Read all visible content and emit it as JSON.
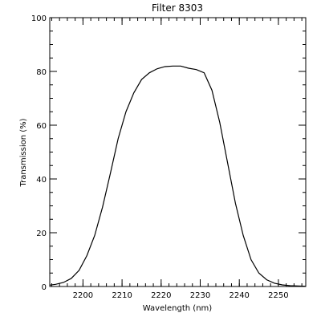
{
  "chart_data": {
    "type": "line",
    "title": "Filter 8303",
    "xlabel": "Wavelength (nm)",
    "ylabel": "Transmission (%)",
    "xlim": [
      2191.5,
      2257
    ],
    "ylim": [
      0,
      100
    ],
    "xticks": [
      2200,
      2210,
      2220,
      2230,
      2240,
      2250
    ],
    "yticks": [
      0,
      20,
      40,
      60,
      80,
      100
    ],
    "xminor_step": 2,
    "yminor_step": 5,
    "grid": false,
    "series": [
      {
        "x": [
          2191.5,
          2193,
          2195,
          2197,
          2199,
          2201,
          2203,
          2205,
          2207,
          2209,
          2211,
          2213,
          2215,
          2217,
          2219,
          2221,
          2223,
          2225,
          2227,
          2229,
          2231,
          2233,
          2235,
          2237,
          2239,
          2241,
          2243,
          2245,
          2247,
          2249,
          2251,
          2253,
          2255,
          2257
        ],
        "y": [
          0.5,
          0.8,
          1.5,
          3,
          6,
          11.5,
          19,
          29.5,
          42,
          55,
          65,
          72,
          77,
          79.5,
          81,
          81.8,
          82,
          82,
          81.2,
          80.7,
          79.5,
          73,
          61,
          46,
          31,
          19,
          10,
          5,
          2.5,
          1.2,
          0.6,
          0.3,
          0.2,
          0.1
        ]
      }
    ]
  }
}
